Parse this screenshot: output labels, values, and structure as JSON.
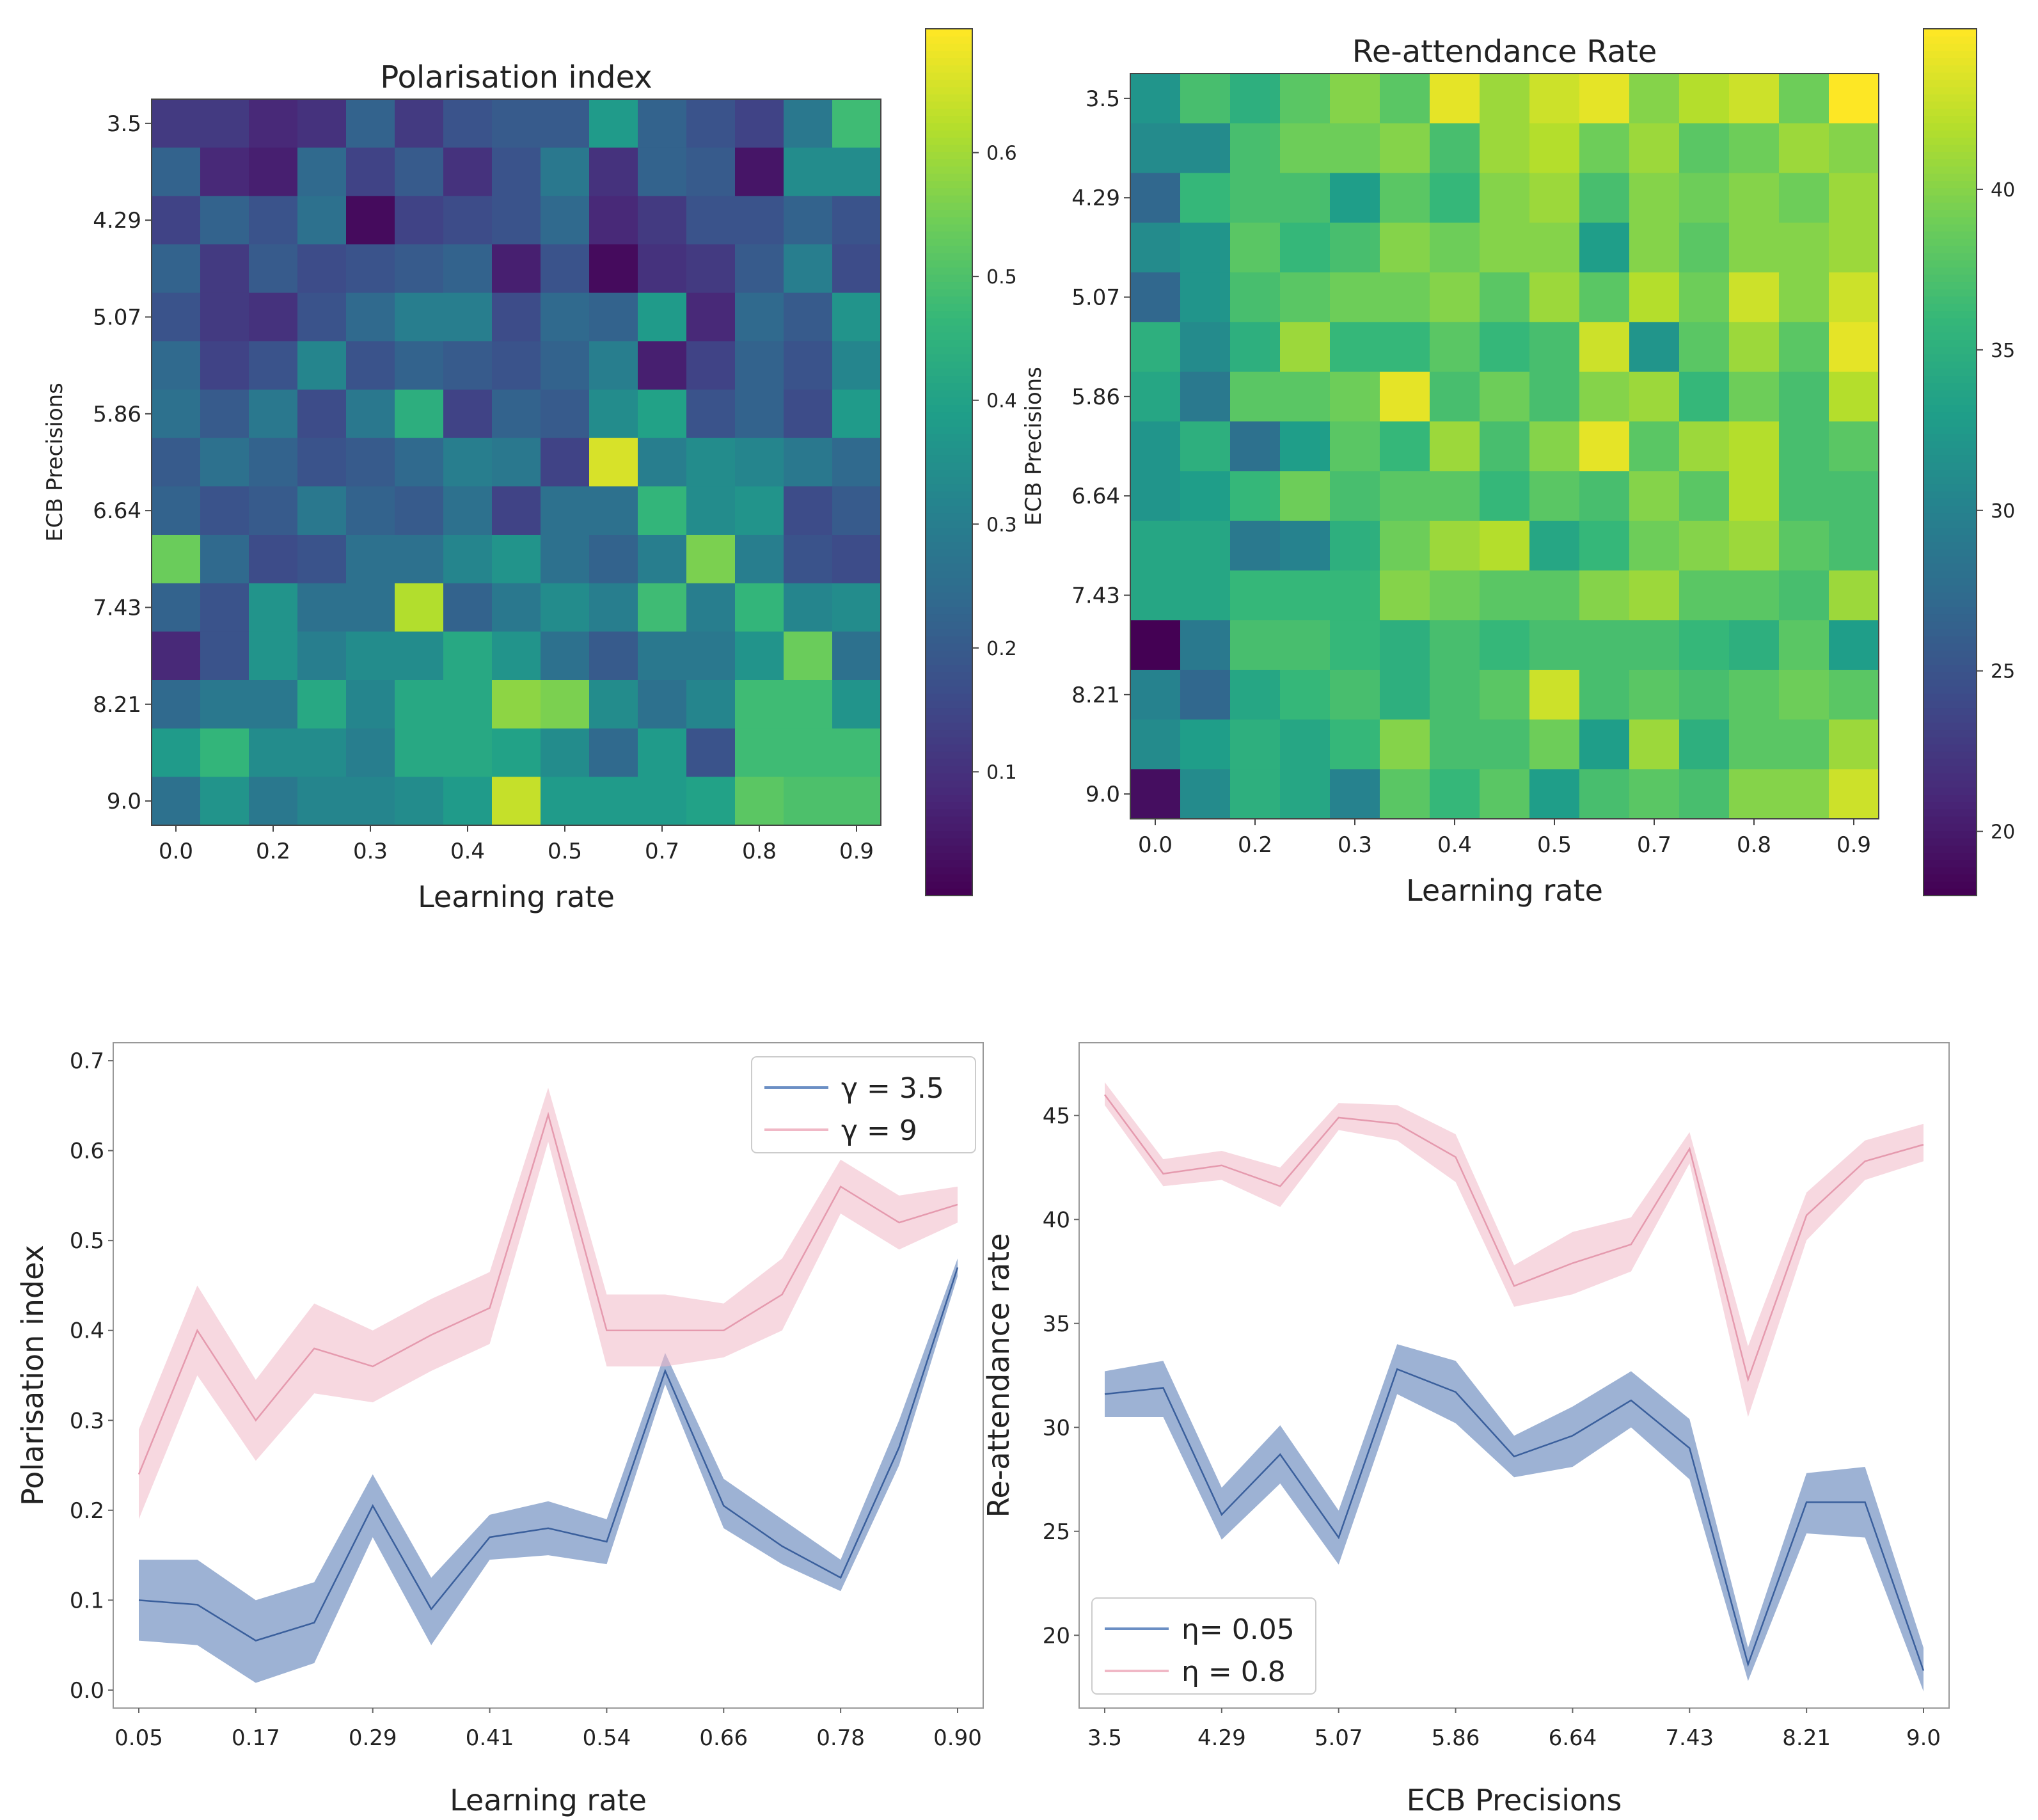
{
  "figure": {
    "panels": 4
  },
  "chart_data": [
    {
      "id": "hm1",
      "type": "heatmap",
      "title": "Polarisation index",
      "xlabel": "Learning rate",
      "ylabel": "ECB Precisions",
      "x_tick_labels": [
        "0.0",
        "0.2",
        "0.3",
        "0.4",
        "0.5",
        "0.7",
        "0.8",
        "0.9"
      ],
      "y_tick_labels": [
        "3.5",
        "4.29",
        "5.07",
        "5.86",
        "6.64",
        "7.43",
        "8.21",
        "9.0"
      ],
      "colorbar_range": [
        0.0,
        0.7
      ],
      "colorbar_ticks": [
        "0.1",
        "0.2",
        "0.3",
        "0.4",
        "0.5",
        "0.6"
      ],
      "colorbar_values": [
        0.1,
        0.2,
        0.3,
        0.4,
        0.5,
        0.6
      ],
      "values": [
        [
          0.12,
          0.12,
          0.08,
          0.1,
          0.22,
          0.12,
          0.18,
          0.2,
          0.2,
          0.38,
          0.22,
          0.18,
          0.14,
          0.28,
          0.48
        ],
        [
          0.22,
          0.08,
          0.06,
          0.24,
          0.14,
          0.2,
          0.1,
          0.18,
          0.28,
          0.1,
          0.22,
          0.2,
          0.04,
          0.34,
          0.34
        ],
        [
          0.14,
          0.22,
          0.18,
          0.26,
          0.02,
          0.14,
          0.16,
          0.18,
          0.24,
          0.08,
          0.12,
          0.18,
          0.18,
          0.22,
          0.18
        ],
        [
          0.22,
          0.12,
          0.2,
          0.16,
          0.18,
          0.2,
          0.22,
          0.06,
          0.18,
          0.02,
          0.1,
          0.12,
          0.2,
          0.3,
          0.16
        ],
        [
          0.18,
          0.12,
          0.1,
          0.18,
          0.24,
          0.3,
          0.3,
          0.16,
          0.24,
          0.22,
          0.38,
          0.08,
          0.24,
          0.2,
          0.36
        ],
        [
          0.24,
          0.14,
          0.18,
          0.32,
          0.18,
          0.22,
          0.2,
          0.18,
          0.22,
          0.3,
          0.06,
          0.14,
          0.22,
          0.18,
          0.32
        ],
        [
          0.26,
          0.2,
          0.28,
          0.16,
          0.28,
          0.44,
          0.14,
          0.22,
          0.2,
          0.34,
          0.4,
          0.18,
          0.22,
          0.16,
          0.38
        ],
        [
          0.2,
          0.26,
          0.22,
          0.18,
          0.2,
          0.24,
          0.3,
          0.28,
          0.14,
          0.66,
          0.3,
          0.34,
          0.32,
          0.28,
          0.24
        ],
        [
          0.22,
          0.18,
          0.2,
          0.28,
          0.22,
          0.2,
          0.26,
          0.14,
          0.26,
          0.26,
          0.46,
          0.34,
          0.36,
          0.16,
          0.2
        ],
        [
          0.54,
          0.24,
          0.16,
          0.18,
          0.26,
          0.26,
          0.32,
          0.36,
          0.26,
          0.22,
          0.3,
          0.56,
          0.3,
          0.18,
          0.16
        ],
        [
          0.22,
          0.18,
          0.36,
          0.26,
          0.26,
          0.62,
          0.22,
          0.28,
          0.34,
          0.3,
          0.48,
          0.3,
          0.46,
          0.32,
          0.34
        ],
        [
          0.08,
          0.18,
          0.36,
          0.3,
          0.34,
          0.34,
          0.42,
          0.36,
          0.26,
          0.2,
          0.28,
          0.28,
          0.36,
          0.54,
          0.26
        ],
        [
          0.24,
          0.28,
          0.28,
          0.42,
          0.32,
          0.42,
          0.42,
          0.58,
          0.56,
          0.34,
          0.26,
          0.32,
          0.48,
          0.48,
          0.36
        ],
        [
          0.38,
          0.46,
          0.34,
          0.34,
          0.3,
          0.42,
          0.42,
          0.4,
          0.34,
          0.24,
          0.38,
          0.18,
          0.48,
          0.48,
          0.48
        ],
        [
          0.26,
          0.36,
          0.28,
          0.32,
          0.32,
          0.34,
          0.38,
          0.64,
          0.38,
          0.38,
          0.38,
          0.4,
          0.52,
          0.5,
          0.5
        ]
      ]
    },
    {
      "id": "hm2",
      "type": "heatmap",
      "title": "Re-attendance Rate",
      "xlabel": "Learning rate",
      "ylabel": "ECB Precisions",
      "x_tick_labels": [
        "0.0",
        "0.2",
        "0.3",
        "0.4",
        "0.5",
        "0.7",
        "0.8",
        "0.9"
      ],
      "y_tick_labels": [
        "3.5",
        "4.29",
        "5.07",
        "5.86",
        "6.64",
        "7.43",
        "8.21",
        "9.0"
      ],
      "colorbar_range": [
        18,
        45
      ],
      "colorbar_ticks": [
        "20",
        "25",
        "30",
        "35",
        "40"
      ],
      "colorbar_values": [
        20,
        25,
        30,
        35,
        40
      ],
      "values": [
        [
          32,
          37,
          35,
          38,
          40,
          38,
          44,
          41,
          43,
          44,
          40,
          42,
          43,
          39,
          45
        ],
        [
          31,
          31,
          37,
          39,
          39,
          40,
          37,
          41,
          42,
          39,
          41,
          38,
          39,
          41,
          40
        ],
        [
          27,
          36,
          37,
          37,
          33,
          38,
          36,
          40,
          41,
          37,
          40,
          39,
          40,
          39,
          41
        ],
        [
          31,
          32,
          38,
          36,
          37,
          40,
          39,
          40,
          40,
          33,
          40,
          38,
          40,
          40,
          41
        ],
        [
          27,
          32,
          37,
          38,
          39,
          39,
          40,
          38,
          41,
          38,
          42,
          39,
          43,
          40,
          43
        ],
        [
          35,
          31,
          35,
          41,
          36,
          36,
          38,
          36,
          37,
          43,
          32,
          38,
          41,
          38,
          44
        ],
        [
          34,
          29,
          38,
          38,
          39,
          44,
          37,
          39,
          37,
          40,
          41,
          36,
          39,
          37,
          42
        ],
        [
          32,
          35,
          28,
          33,
          38,
          36,
          41,
          37,
          40,
          44,
          38,
          41,
          42,
          37,
          38
        ],
        [
          32,
          33,
          36,
          39,
          37,
          38,
          38,
          36,
          38,
          37,
          40,
          38,
          42,
          37,
          37
        ],
        [
          34,
          34,
          29,
          30,
          35,
          39,
          41,
          42,
          34,
          36,
          39,
          40,
          41,
          38,
          37
        ],
        [
          34,
          34,
          36,
          36,
          36,
          40,
          39,
          38,
          38,
          40,
          41,
          38,
          38,
          37,
          41
        ],
        [
          18,
          29,
          37,
          37,
          36,
          35,
          37,
          36,
          37,
          37,
          37,
          36,
          35,
          38,
          33
        ],
        [
          30,
          27,
          34,
          36,
          37,
          35,
          37,
          38,
          43,
          37,
          38,
          37,
          38,
          39,
          38
        ],
        [
          31,
          33,
          35,
          34,
          36,
          40,
          37,
          37,
          39,
          33,
          41,
          35,
          38,
          38,
          41
        ],
        [
          19,
          31,
          35,
          34,
          30,
          38,
          36,
          38,
          33,
          37,
          38,
          37,
          40,
          40,
          43
        ]
      ]
    },
    {
      "id": "line1",
      "type": "line",
      "xlabel": "Learning rate",
      "ylabel": "Polarisation index",
      "ylim": [
        -0.02,
        0.72
      ],
      "y_ticks": [
        "0.0",
        "0.1",
        "0.2",
        "0.3",
        "0.4",
        "0.5",
        "0.6",
        "0.7"
      ],
      "y_tick_values": [
        0.0,
        0.1,
        0.2,
        0.3,
        0.4,
        0.5,
        0.6,
        0.7
      ],
      "x_tick_labels": [
        "0.05",
        "0.17",
        "0.29",
        "0.41",
        "0.54",
        "0.66",
        "0.78",
        "0.90"
      ],
      "x_tick_index": [
        0,
        2,
        4,
        6,
        8,
        10,
        12,
        14
      ],
      "legend_position": "top-right",
      "series": [
        {
          "name": "γ = 3.5",
          "color": "#4c72b0",
          "values": [
            0.1,
            0.095,
            0.055,
            0.075,
            0.205,
            0.09,
            0.17,
            0.18,
            0.165,
            0.355,
            0.205,
            0.16,
            0.125,
            0.27,
            0.47
          ],
          "lower": [
            0.055,
            0.05,
            0.008,
            0.03,
            0.17,
            0.05,
            0.145,
            0.15,
            0.14,
            0.34,
            0.18,
            0.14,
            0.11,
            0.25,
            0.46
          ],
          "upper": [
            0.145,
            0.145,
            0.1,
            0.12,
            0.24,
            0.125,
            0.195,
            0.21,
            0.19,
            0.375,
            0.235,
            0.19,
            0.145,
            0.3,
            0.48
          ]
        },
        {
          "name": "γ = 9",
          "color": "#f0b8c6",
          "values": [
            0.24,
            0.4,
            0.3,
            0.38,
            0.36,
            0.395,
            0.425,
            0.64,
            0.4,
            0.4,
            0.4,
            0.44,
            0.56,
            0.52,
            0.54
          ],
          "lower": [
            0.19,
            0.35,
            0.255,
            0.33,
            0.32,
            0.355,
            0.385,
            0.61,
            0.36,
            0.36,
            0.37,
            0.4,
            0.53,
            0.49,
            0.52
          ],
          "upper": [
            0.29,
            0.45,
            0.345,
            0.43,
            0.4,
            0.435,
            0.465,
            0.67,
            0.44,
            0.44,
            0.43,
            0.48,
            0.59,
            0.55,
            0.56
          ]
        }
      ]
    },
    {
      "id": "line2",
      "type": "line",
      "xlabel": "ECB Precisions",
      "ylabel": "Re-attendance rate",
      "ylim": [
        16.5,
        48.5
      ],
      "y_ticks": [
        "20",
        "25",
        "30",
        "35",
        "40",
        "45"
      ],
      "y_tick_values": [
        20,
        25,
        30,
        35,
        40,
        45
      ],
      "x_tick_labels": [
        "3.5",
        "4.29",
        "5.07",
        "5.86",
        "6.64",
        "7.43",
        "8.21",
        "9.0"
      ],
      "x_tick_index": [
        0,
        2,
        4,
        6,
        8,
        10,
        12,
        14
      ],
      "legend_position": "bottom-left",
      "series": [
        {
          "name": "η= 0.05",
          "color": "#4c72b0",
          "values": [
            31.6,
            31.9,
            25.8,
            28.7,
            24.7,
            32.8,
            31.7,
            28.6,
            29.6,
            31.3,
            29.0,
            18.6,
            26.4,
            26.4,
            18.3
          ],
          "lower": [
            30.5,
            30.5,
            24.6,
            27.3,
            23.4,
            31.6,
            30.2,
            27.6,
            28.1,
            30.0,
            27.5,
            17.8,
            24.9,
            24.7,
            17.3
          ],
          "upper": [
            32.7,
            33.2,
            27.1,
            30.1,
            26.0,
            34.0,
            33.2,
            29.6,
            31.0,
            32.7,
            30.4,
            19.4,
            27.8,
            28.1,
            19.4
          ]
        },
        {
          "name": "η = 0.8",
          "color": "#f0b8c6",
          "values": [
            46.0,
            42.2,
            42.6,
            41.6,
            44.9,
            44.6,
            43.0,
            36.8,
            37.9,
            38.8,
            43.4,
            32.3,
            40.2,
            42.8,
            43.6
          ],
          "lower": [
            45.5,
            41.6,
            41.9,
            40.6,
            44.3,
            43.8,
            41.8,
            35.8,
            36.4,
            37.5,
            42.7,
            30.5,
            39.0,
            41.9,
            42.8
          ],
          "upper": [
            46.6,
            42.9,
            43.3,
            42.5,
            45.6,
            45.5,
            44.1,
            37.8,
            39.4,
            40.1,
            44.2,
            33.9,
            41.3,
            43.8,
            44.6
          ]
        }
      ]
    }
  ]
}
